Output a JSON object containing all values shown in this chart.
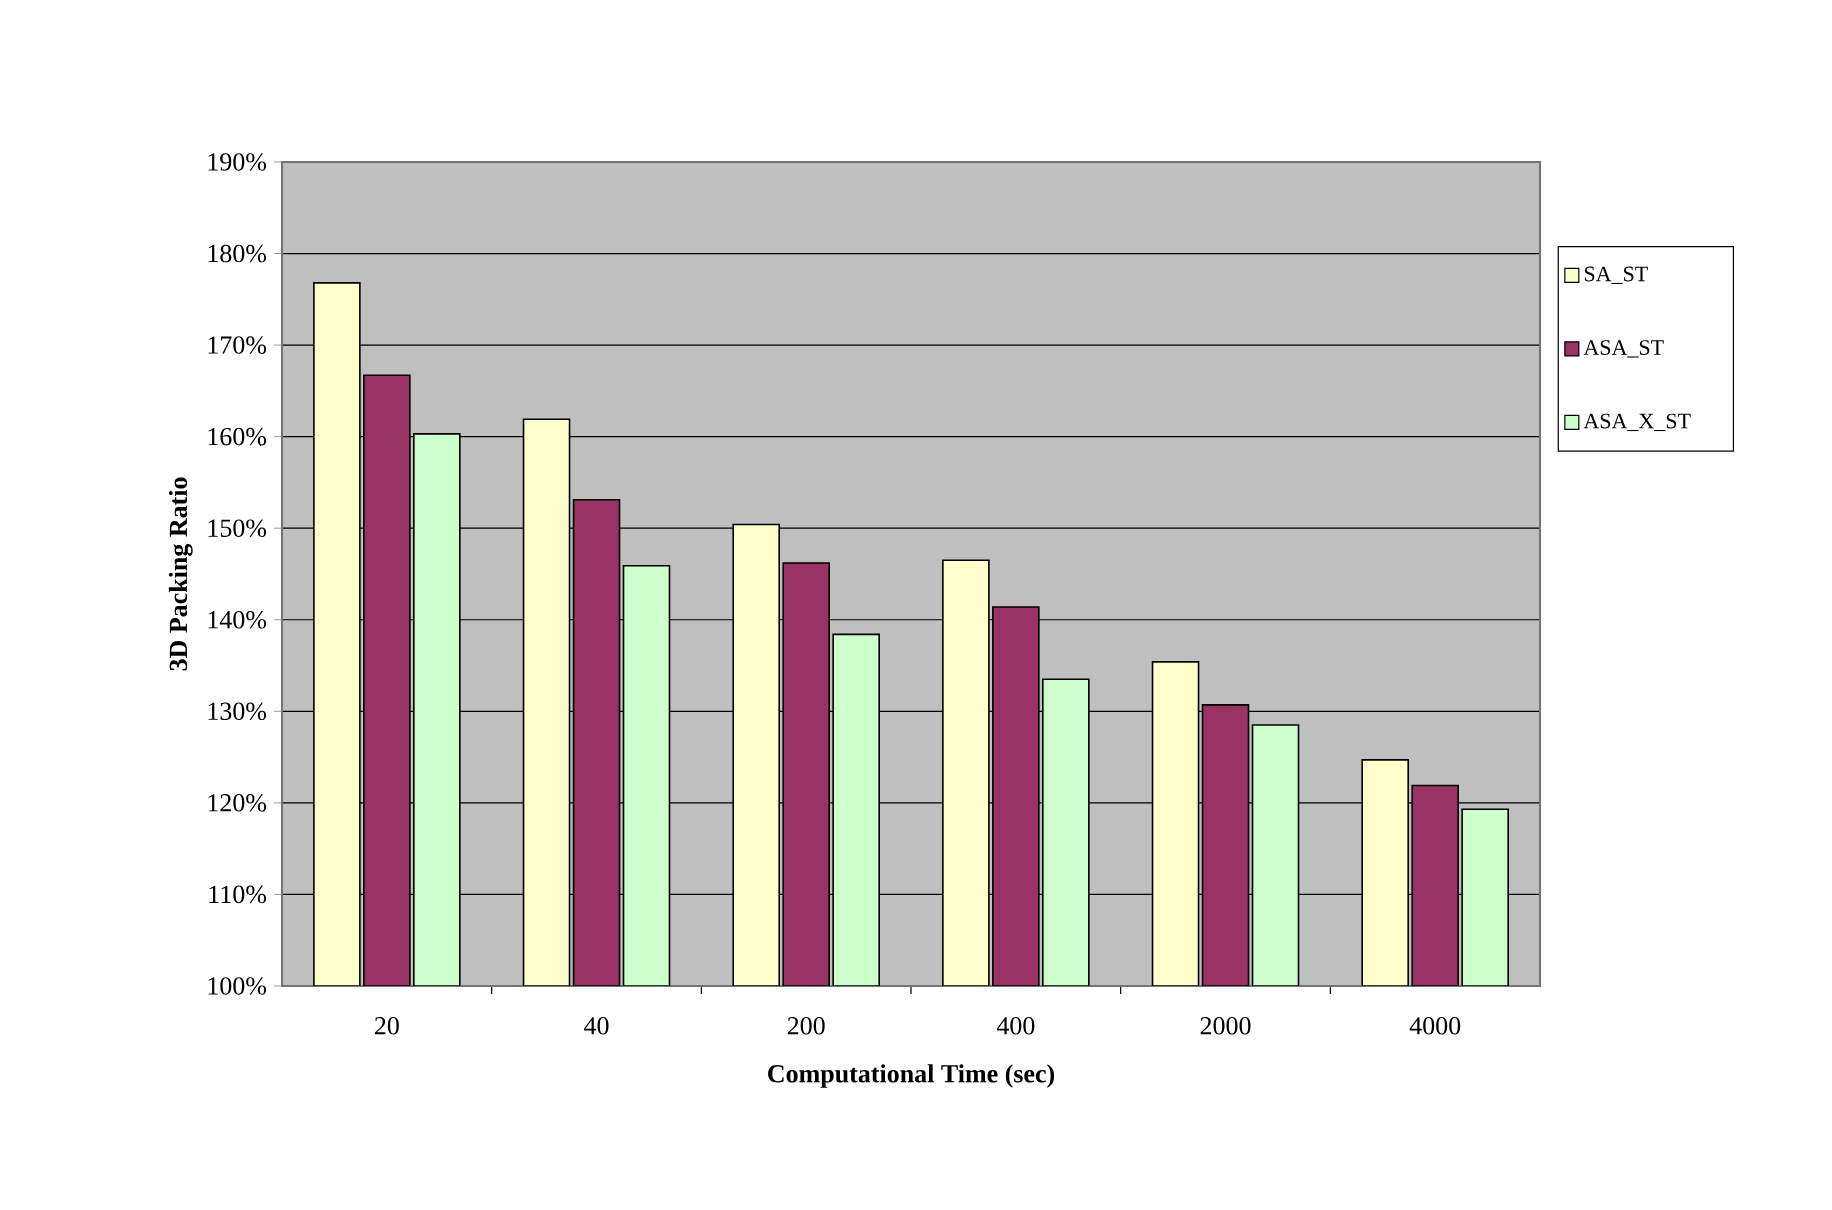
{
  "chart_data": {
    "type": "bar",
    "xlabel": "Computational Time (sec)",
    "ylabel": "3D Packing Ratio",
    "categories": [
      "20",
      "40",
      "200",
      "400",
      "2000",
      "4000"
    ],
    "series": [
      {
        "name": "SA_ST",
        "color": "#ffffcc",
        "values": [
          176.8,
          161.9,
          150.4,
          146.5,
          135.4,
          124.7
        ]
      },
      {
        "name": "ASA_ST",
        "color": "#993366",
        "values": [
          166.7,
          153.1,
          146.2,
          141.4,
          130.7,
          121.9
        ]
      },
      {
        "name": "ASA_X_ST",
        "color": "#ccffcc",
        "values": [
          160.3,
          145.9,
          138.4,
          133.5,
          128.5,
          119.3
        ]
      }
    ],
    "ylim": [
      100,
      190
    ],
    "yticks": [
      {
        "value": 100,
        "label": "100%"
      },
      {
        "value": 110,
        "label": "110%"
      },
      {
        "value": 120,
        "label": "120%"
      },
      {
        "value": 130,
        "label": "130%"
      },
      {
        "value": 140,
        "label": "140%"
      },
      {
        "value": 150,
        "label": "150%"
      },
      {
        "value": 160,
        "label": "160%"
      },
      {
        "value": 170,
        "label": "170%"
      },
      {
        "value": 180,
        "label": "180%"
      },
      {
        "value": 190,
        "label": "190%"
      }
    ],
    "grid": "y",
    "legend": "right"
  }
}
